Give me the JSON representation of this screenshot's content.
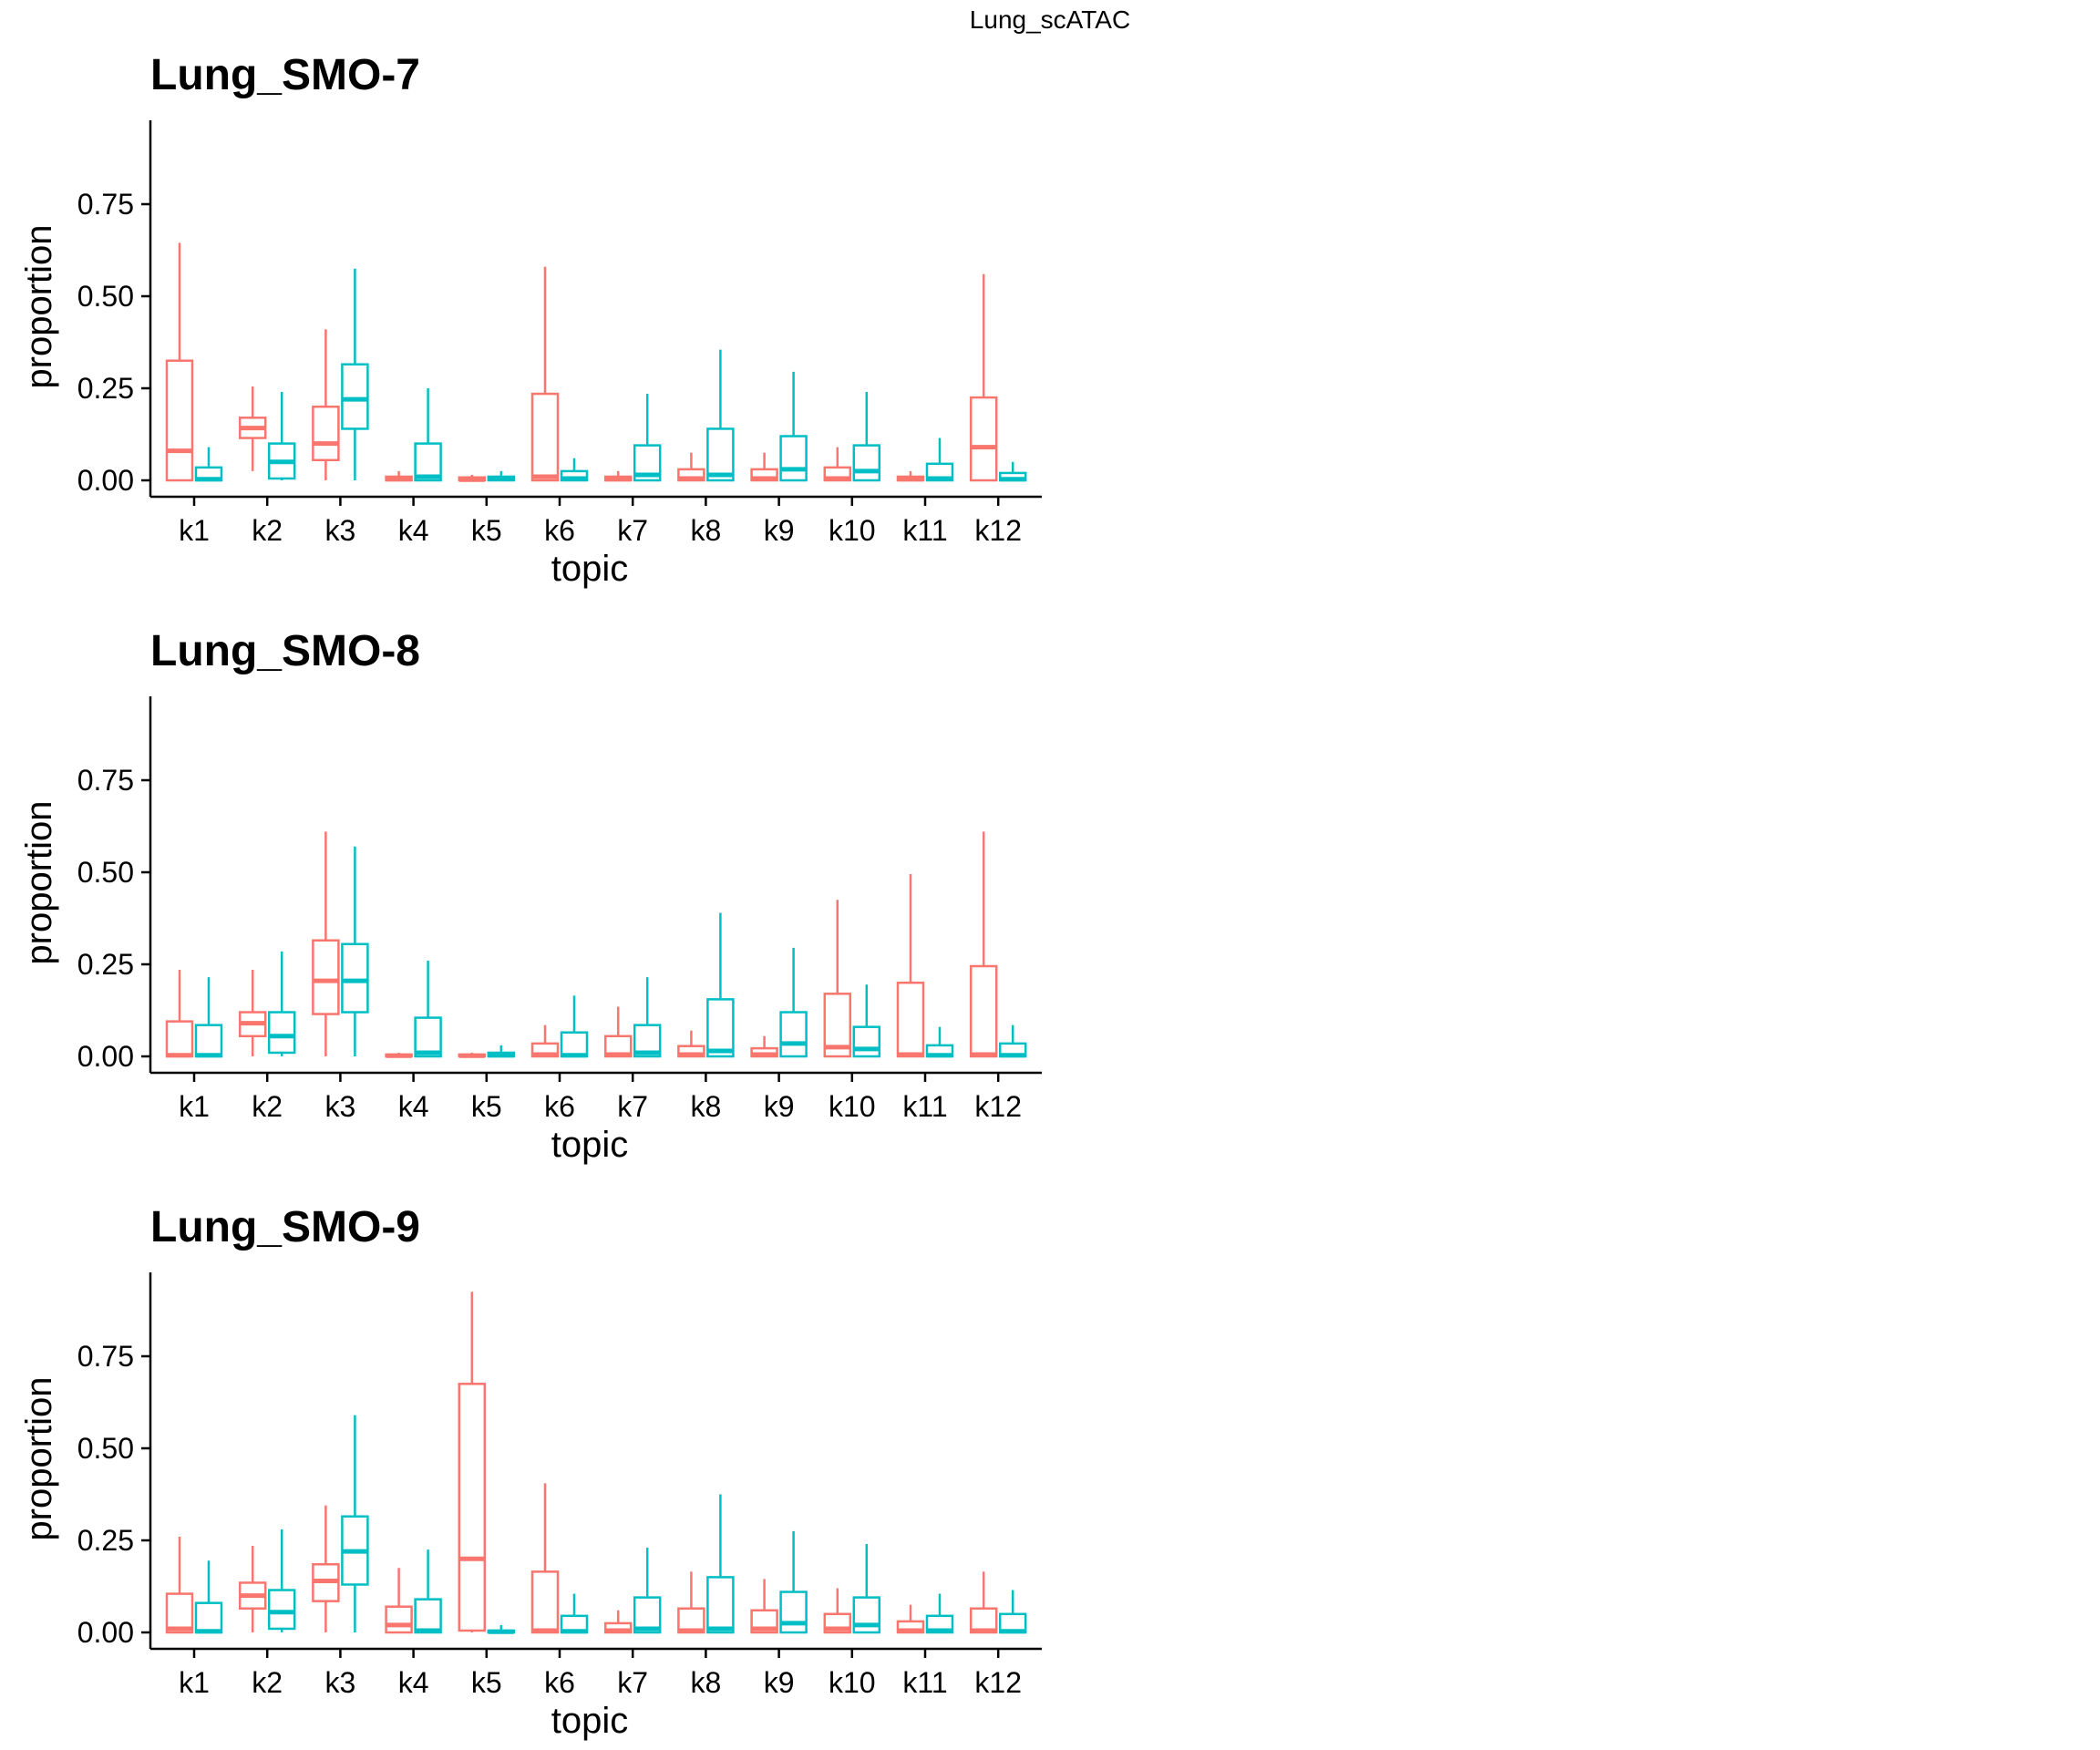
{
  "figure": {
    "title": "Lung_scATAC"
  },
  "chart_data": [
    {
      "type": "box",
      "title": "Lung_SMO-7",
      "xlabel": "topic",
      "ylabel": "proportion",
      "ylim": [
        -0.09,
        0.98
      ],
      "yticks": [
        "0.00",
        "0.25",
        "0.50",
        "0.75"
      ],
      "ytick_values": [
        0,
        0.25,
        0.5,
        0.75
      ],
      "categories": [
        "k1",
        "k2",
        "k3",
        "k4",
        "k5",
        "k6",
        "k7",
        "k8",
        "k9",
        "k10",
        "k11",
        "k12"
      ],
      "series": [
        {
          "color": "#F8766D",
          "boxes": [
            {
              "min": 0,
              "q1": 0,
              "median": 0.08,
              "q3": 0.325,
              "max": 0.645
            },
            {
              "min": 0.025,
              "q1": 0.115,
              "median": 0.142,
              "q3": 0.17,
              "max": 0.255
            },
            {
              "min": 0,
              "q1": 0.055,
              "median": 0.1,
              "q3": 0.2,
              "max": 0.41
            },
            {
              "min": 0,
              "q1": 0,
              "median": 0.003,
              "q3": 0.01,
              "max": 0.025
            },
            {
              "min": 0,
              "q1": 0,
              "median": 0.002,
              "q3": 0.008,
              "max": 0.015
            },
            {
              "min": 0,
              "q1": 0,
              "median": 0.01,
              "q3": 0.235,
              "max": 0.58
            },
            {
              "min": 0,
              "q1": 0,
              "median": 0.003,
              "q3": 0.01,
              "max": 0.025
            },
            {
              "min": 0,
              "q1": 0,
              "median": 0.005,
              "q3": 0.03,
              "max": 0.075
            },
            {
              "min": 0,
              "q1": 0,
              "median": 0.005,
              "q3": 0.03,
              "max": 0.075
            },
            {
              "min": 0,
              "q1": 0,
              "median": 0.005,
              "q3": 0.035,
              "max": 0.09
            },
            {
              "min": 0,
              "q1": 0,
              "median": 0.003,
              "q3": 0.01,
              "max": 0.025
            },
            {
              "min": 0,
              "q1": 0,
              "median": 0.09,
              "q3": 0.225,
              "max": 0.56
            }
          ]
        },
        {
          "color": "#00BFC4",
          "boxes": [
            {
              "min": 0,
              "q1": 0,
              "median": 0.003,
              "q3": 0.035,
              "max": 0.09
            },
            {
              "min": 0,
              "q1": 0.005,
              "median": 0.05,
              "q3": 0.1,
              "max": 0.24
            },
            {
              "min": 0,
              "q1": 0.14,
              "median": 0.22,
              "q3": 0.315,
              "max": 0.575
            },
            {
              "min": 0,
              "q1": 0,
              "median": 0.01,
              "q3": 0.1,
              "max": 0.25
            },
            {
              "min": 0,
              "q1": 0,
              "median": 0.005,
              "q3": 0.01,
              "max": 0.025
            },
            {
              "min": 0,
              "q1": 0,
              "median": 0.005,
              "q3": 0.025,
              "max": 0.06
            },
            {
              "min": 0,
              "q1": 0,
              "median": 0.015,
              "q3": 0.095,
              "max": 0.235
            },
            {
              "min": 0,
              "q1": 0,
              "median": 0.015,
              "q3": 0.14,
              "max": 0.355
            },
            {
              "min": 0,
              "q1": 0,
              "median": 0.03,
              "q3": 0.12,
              "max": 0.295
            },
            {
              "min": 0,
              "q1": 0,
              "median": 0.025,
              "q3": 0.095,
              "max": 0.24
            },
            {
              "min": 0,
              "q1": 0,
              "median": 0.005,
              "q3": 0.045,
              "max": 0.115
            },
            {
              "min": 0,
              "q1": 0,
              "median": 0.003,
              "q3": 0.02,
              "max": 0.05
            }
          ]
        }
      ]
    },
    {
      "type": "box",
      "title": "Lung_SMO-8",
      "xlabel": "topic",
      "ylabel": "proportion",
      "ylim": [
        -0.09,
        0.98
      ],
      "yticks": [
        "0.00",
        "0.25",
        "0.50",
        "0.75"
      ],
      "ytick_values": [
        0,
        0.25,
        0.5,
        0.75
      ],
      "categories": [
        "k1",
        "k2",
        "k3",
        "k4",
        "k5",
        "k6",
        "k7",
        "k8",
        "k9",
        "k10",
        "k11",
        "k12"
      ],
      "series": [
        {
          "color": "#F8766D",
          "boxes": [
            {
              "min": 0,
              "q1": 0,
              "median": 0.003,
              "q3": 0.095,
              "max": 0.235
            },
            {
              "min": 0,
              "q1": 0.055,
              "median": 0.09,
              "q3": 0.12,
              "max": 0.235
            },
            {
              "min": 0,
              "q1": 0.115,
              "median": 0.205,
              "q3": 0.315,
              "max": 0.61
            },
            {
              "min": 0,
              "q1": 0,
              "median": 0.002,
              "q3": 0.005,
              "max": 0.01
            },
            {
              "min": 0,
              "q1": 0,
              "median": 0.002,
              "q3": 0.005,
              "max": 0.01
            },
            {
              "min": 0,
              "q1": 0,
              "median": 0.005,
              "q3": 0.035,
              "max": 0.085
            },
            {
              "min": 0,
              "q1": 0,
              "median": 0.005,
              "q3": 0.055,
              "max": 0.135
            },
            {
              "min": 0,
              "q1": 0,
              "median": 0.005,
              "q3": 0.028,
              "max": 0.07
            },
            {
              "min": 0,
              "q1": 0,
              "median": 0.005,
              "q3": 0.022,
              "max": 0.055
            },
            {
              "min": 0,
              "q1": 0,
              "median": 0.025,
              "q3": 0.17,
              "max": 0.425
            },
            {
              "min": 0,
              "q1": 0,
              "median": 0.005,
              "q3": 0.2,
              "max": 0.495
            },
            {
              "min": 0,
              "q1": 0,
              "median": 0.005,
              "q3": 0.245,
              "max": 0.61
            }
          ]
        },
        {
          "color": "#00BFC4",
          "boxes": [
            {
              "min": 0,
              "q1": 0,
              "median": 0.003,
              "q3": 0.085,
              "max": 0.215
            },
            {
              "min": 0,
              "q1": 0.01,
              "median": 0.055,
              "q3": 0.12,
              "max": 0.285
            },
            {
              "min": 0,
              "q1": 0.12,
              "median": 0.205,
              "q3": 0.305,
              "max": 0.57
            },
            {
              "min": 0,
              "q1": 0,
              "median": 0.01,
              "q3": 0.105,
              "max": 0.26
            },
            {
              "min": 0,
              "q1": 0,
              "median": 0.003,
              "q3": 0.01,
              "max": 0.03
            },
            {
              "min": 0,
              "q1": 0,
              "median": 0.003,
              "q3": 0.065,
              "max": 0.165
            },
            {
              "min": 0,
              "q1": 0,
              "median": 0.01,
              "q3": 0.085,
              "max": 0.215
            },
            {
              "min": 0,
              "q1": 0,
              "median": 0.015,
              "q3": 0.155,
              "max": 0.39
            },
            {
              "min": 0,
              "q1": 0,
              "median": 0.035,
              "q3": 0.12,
              "max": 0.295
            },
            {
              "min": 0,
              "q1": 0,
              "median": 0.02,
              "q3": 0.08,
              "max": 0.195
            },
            {
              "min": 0,
              "q1": 0,
              "median": 0.003,
              "q3": 0.03,
              "max": 0.08
            },
            {
              "min": 0,
              "q1": 0,
              "median": 0.003,
              "q3": 0.035,
              "max": 0.085
            }
          ]
        }
      ]
    },
    {
      "type": "box",
      "title": "Lung_SMO-9",
      "xlabel": "topic",
      "ylabel": "proportion",
      "ylim": [
        -0.09,
        0.98
      ],
      "yticks": [
        "0.00",
        "0.25",
        "0.50",
        "0.75"
      ],
      "ytick_values": [
        0,
        0.25,
        0.5,
        0.75
      ],
      "categories": [
        "k1",
        "k2",
        "k3",
        "k4",
        "k5",
        "k6",
        "k7",
        "k8",
        "k9",
        "k10",
        "k11",
        "k12"
      ],
      "series": [
        {
          "color": "#F8766D",
          "boxes": [
            {
              "min": 0,
              "q1": 0,
              "median": 0.01,
              "q3": 0.105,
              "max": 0.26
            },
            {
              "min": 0,
              "q1": 0.065,
              "median": 0.1,
              "q3": 0.135,
              "max": 0.235
            },
            {
              "min": 0,
              "q1": 0.085,
              "median": 0.14,
              "q3": 0.185,
              "max": 0.345
            },
            {
              "min": 0,
              "q1": 0,
              "median": 0.02,
              "q3": 0.07,
              "max": 0.175
            },
            {
              "min": 0,
              "q1": 0.005,
              "median": 0.2,
              "q3": 0.675,
              "max": 0.925
            },
            {
              "min": 0,
              "q1": 0,
              "median": 0.005,
              "q3": 0.165,
              "max": 0.405
            },
            {
              "min": 0,
              "q1": 0,
              "median": 0.005,
              "q3": 0.025,
              "max": 0.06
            },
            {
              "min": 0,
              "q1": 0,
              "median": 0.005,
              "q3": 0.065,
              "max": 0.165
            },
            {
              "min": 0,
              "q1": 0,
              "median": 0.01,
              "q3": 0.06,
              "max": 0.145
            },
            {
              "min": 0,
              "q1": 0,
              "median": 0.01,
              "q3": 0.05,
              "max": 0.12
            },
            {
              "min": 0,
              "q1": 0,
              "median": 0.005,
              "q3": 0.03,
              "max": 0.075
            },
            {
              "min": 0,
              "q1": 0,
              "median": 0.005,
              "q3": 0.065,
              "max": 0.165
            }
          ]
        },
        {
          "color": "#00BFC4",
          "boxes": [
            {
              "min": 0,
              "q1": 0,
              "median": 0.003,
              "q3": 0.08,
              "max": 0.195
            },
            {
              "min": 0,
              "q1": 0.01,
              "median": 0.055,
              "q3": 0.115,
              "max": 0.28
            },
            {
              "min": 0,
              "q1": 0.13,
              "median": 0.22,
              "q3": 0.315,
              "max": 0.59
            },
            {
              "min": 0,
              "q1": 0,
              "median": 0.005,
              "q3": 0.09,
              "max": 0.225
            },
            {
              "min": 0,
              "q1": 0,
              "median": 0.002,
              "q3": 0.005,
              "max": 0.02
            },
            {
              "min": 0,
              "q1": 0,
              "median": 0.003,
              "q3": 0.045,
              "max": 0.105
            },
            {
              "min": 0,
              "q1": 0,
              "median": 0.01,
              "q3": 0.095,
              "max": 0.23
            },
            {
              "min": 0,
              "q1": 0,
              "median": 0.01,
              "q3": 0.15,
              "max": 0.375
            },
            {
              "min": 0,
              "q1": 0,
              "median": 0.025,
              "q3": 0.11,
              "max": 0.275
            },
            {
              "min": 0,
              "q1": 0,
              "median": 0.02,
              "q3": 0.095,
              "max": 0.24
            },
            {
              "min": 0,
              "q1": 0,
              "median": 0.005,
              "q3": 0.045,
              "max": 0.105
            },
            {
              "min": 0,
              "q1": 0,
              "median": 0.003,
              "q3": 0.05,
              "max": 0.115
            }
          ]
        }
      ]
    }
  ]
}
